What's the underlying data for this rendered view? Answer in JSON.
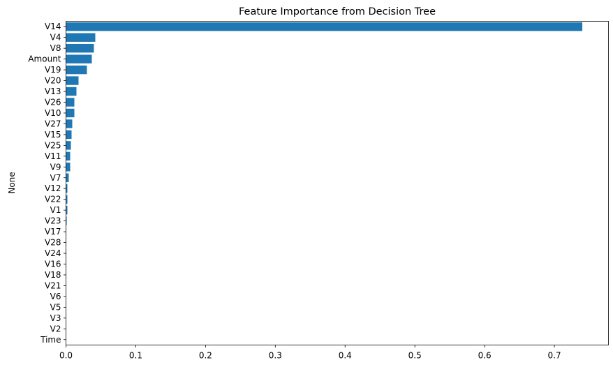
{
  "chart_data": {
    "type": "bar",
    "orientation": "horizontal",
    "title": "Feature Importance from Decision Tree",
    "xlabel": "",
    "ylabel": "None",
    "xlim": [
      0,
      0.7775
    ],
    "xticks": [
      0.0,
      0.1,
      0.2,
      0.3,
      0.4,
      0.5,
      0.6,
      0.7
    ],
    "xtick_labels": [
      "0.0",
      "0.1",
      "0.2",
      "0.3",
      "0.4",
      "0.5",
      "0.6",
      "0.7"
    ],
    "bar_color": "#1f77b4",
    "grid": false,
    "categories": [
      "V14",
      "V4",
      "V8",
      "Amount",
      "V19",
      "V20",
      "V13",
      "V26",
      "V10",
      "V27",
      "V15",
      "V25",
      "V11",
      "V9",
      "V7",
      "V12",
      "V22",
      "V1",
      "V23",
      "V17",
      "V28",
      "V24",
      "V16",
      "V18",
      "V21",
      "V6",
      "V5",
      "V3",
      "V2",
      "Time"
    ],
    "values": [
      0.74,
      0.042,
      0.04,
      0.037,
      0.03,
      0.018,
      0.015,
      0.012,
      0.012,
      0.009,
      0.008,
      0.007,
      0.006,
      0.006,
      0.004,
      0.002,
      0.002,
      0.002,
      0.001,
      0.0005,
      0.0005,
      0.0005,
      0.0005,
      0.0003,
      0.0003,
      0.0002,
      0.0002,
      0.0001,
      0.0001,
      0.0
    ]
  }
}
